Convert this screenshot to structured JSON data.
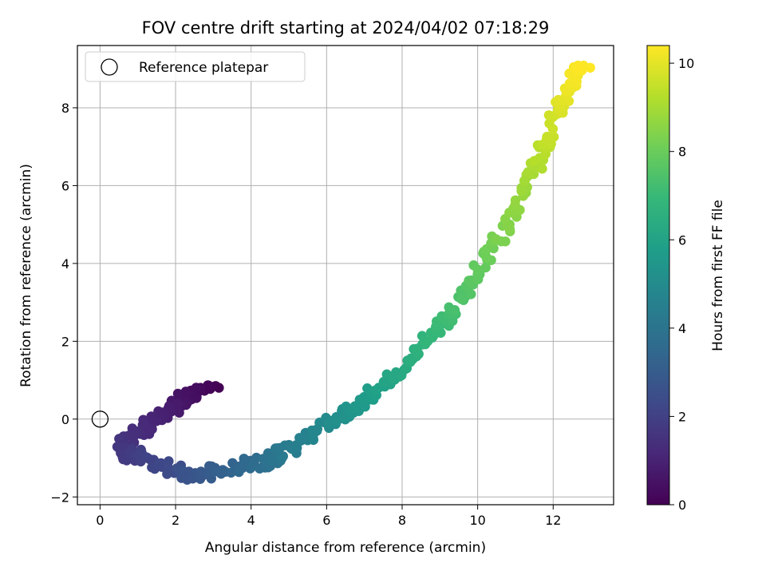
{
  "chart_data": {
    "type": "scatter",
    "title": "FOV centre drift starting at 2024/04/02 07:18:29",
    "xlabel": "Angular distance from reference (arcmin)",
    "ylabel": "Rotation from reference (arcmin)",
    "xlim": [
      -0.6,
      13.6
    ],
    "ylim": [
      -2.2,
      9.6
    ],
    "xticks": [
      0,
      2,
      4,
      6,
      8,
      10,
      12
    ],
    "yticks": [
      -2,
      0,
      2,
      4,
      6,
      8
    ],
    "grid": true,
    "legend": {
      "position": "top-left",
      "entries": [
        "Reference platepar"
      ]
    },
    "reference_point": {
      "x": 0,
      "y": 0
    },
    "colorbar": {
      "label": "Hours from first FF file",
      "min": 0,
      "max": 10.4,
      "ticks": [
        0,
        2,
        4,
        6,
        8,
        10
      ],
      "colormap": "viridis",
      "stops": [
        "#440154",
        "#482878",
        "#3e4a89",
        "#31688e",
        "#26828e",
        "#1f9e89",
        "#35b779",
        "#6ece58",
        "#b5de2b",
        "#fde725"
      ]
    },
    "trajectory_knots": [
      {
        "t": 0.0,
        "x": 3.0,
        "y": 0.8
      },
      {
        "t": 0.3,
        "x": 2.5,
        "y": 0.7
      },
      {
        "t": 0.6,
        "x": 2.1,
        "y": 0.45
      },
      {
        "t": 0.9,
        "x": 1.75,
        "y": 0.15
      },
      {
        "t": 1.2,
        "x": 1.2,
        "y": -0.2
      },
      {
        "t": 1.5,
        "x": 0.7,
        "y": -0.55
      },
      {
        "t": 1.7,
        "x": 0.55,
        "y": -0.9
      },
      {
        "t": 2.0,
        "x": 1.2,
        "y": -0.95
      },
      {
        "t": 2.3,
        "x": 1.8,
        "y": -1.25
      },
      {
        "t": 2.7,
        "x": 2.4,
        "y": -1.4
      },
      {
        "t": 3.1,
        "x": 3.1,
        "y": -1.35
      },
      {
        "t": 3.5,
        "x": 3.8,
        "y": -1.2
      },
      {
        "t": 3.9,
        "x": 4.4,
        "y": -1.05
      },
      {
        "t": 4.3,
        "x": 5.0,
        "y": -0.8
      },
      {
        "t": 4.7,
        "x": 5.6,
        "y": -0.4
      },
      {
        "t": 5.1,
        "x": 6.2,
        "y": 0.0
      },
      {
        "t": 5.5,
        "x": 6.8,
        "y": 0.35
      },
      {
        "t": 5.9,
        "x": 7.4,
        "y": 0.8
      },
      {
        "t": 6.3,
        "x": 8.0,
        "y": 1.3
      },
      {
        "t": 6.7,
        "x": 8.6,
        "y": 1.95
      },
      {
        "t": 7.1,
        "x": 9.1,
        "y": 2.5
      },
      {
        "t": 7.5,
        "x": 9.6,
        "y": 3.2
      },
      {
        "t": 7.9,
        "x": 10.1,
        "y": 3.95
      },
      {
        "t": 8.3,
        "x": 10.6,
        "y": 4.7
      },
      {
        "t": 8.7,
        "x": 11.1,
        "y": 5.6
      },
      {
        "t": 9.1,
        "x": 11.5,
        "y": 6.45
      },
      {
        "t": 9.5,
        "x": 11.9,
        "y": 7.3
      },
      {
        "t": 9.9,
        "x": 12.2,
        "y": 8.1
      },
      {
        "t": 10.2,
        "x": 12.5,
        "y": 8.7
      },
      {
        "t": 10.4,
        "x": 12.7,
        "y": 9.05
      }
    ],
    "points_per_segment": 14,
    "scatter_amplitude": {
      "x": 0.16,
      "y": 0.17
    }
  }
}
